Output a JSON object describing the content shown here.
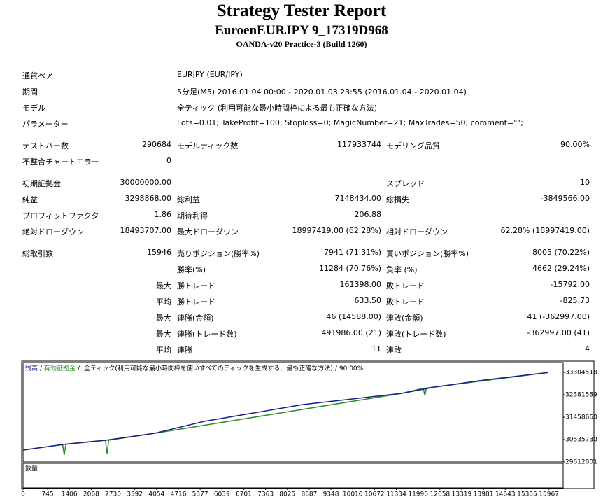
{
  "header": {
    "title": "Strategy Tester Report",
    "subtitle": "EuroenEURJPY 9_17319D968",
    "build": "OANDA-v20 Practice-3 (Build 1260)"
  },
  "settings": [
    {
      "label": "通貨ペア",
      "value": "EURJPY (EUR/JPY)"
    },
    {
      "label": "期間",
      "value": "5分足(M5) 2016.01.04 00:00 - 2020.01.03 23:55 (2016.01.04 - 2020.01.04)"
    },
    {
      "label": "モデル",
      "value": "全ティック (利用可能な最小時間枠による最も正確な方法)"
    },
    {
      "label": "パラメーター",
      "value": "Lots=0.01; TakeProfit=100; Stoploss=0; MagicNumber=21; MaxTrades=50; comment=\"\";"
    }
  ],
  "stats": [
    [
      {
        "c1": "テストバー数",
        "c2": "290684",
        "c3": "モデルティック数",
        "c4": "117933744",
        "c5": "モデリング品質",
        "c6": "90.00%"
      },
      {
        "c1": "不整合チャートエラー",
        "c2": "0"
      }
    ],
    [
      {
        "c1": "初期証拠金",
        "c2": "30000000.00",
        "c5": "スプレッド",
        "c6": "10"
      },
      {
        "c1": "純益",
        "c2": "3298868.00",
        "c3": "総利益",
        "c4": "7148434.00",
        "c5": "総損失",
        "c6": "-3849566.00"
      },
      {
        "c1": "プロフィットファクタ",
        "c2": "1.86",
        "c3": "期待利得",
        "c4": "206.88"
      },
      {
        "c1": "絶対ドローダウン",
        "c2": "18493707.00",
        "c3": "最大ドローダウン",
        "c4": "18997419.00 (62.28%)",
        "c5": "相対ドローダウン",
        "c6": "62.28% (18997419.00)"
      }
    ],
    [
      {
        "c1": "総取引数",
        "c2": "15946",
        "c3": "売りポジション(勝率%)",
        "c4": "7941 (71.31%)",
        "c5": "買いポジション(勝率%)",
        "c6": "8005 (70.22%)"
      },
      {
        "c3": "勝率(%)",
        "c4": "11284 (70.76%)",
        "c5": "負率 (%)",
        "c6": "4662 (29.24%)"
      },
      {
        "c2": "最大",
        "c3": "勝トレード",
        "c4": "161398.00",
        "c5": "敗トレード",
        "c6": "-15792.00"
      },
      {
        "c2": "平均",
        "c3": "勝トレード",
        "c4": "633.50",
        "c5": "敗トレード",
        "c6": "-825.73"
      },
      {
        "c2": "最大",
        "c3": "連勝(金額)",
        "c4": "46 (14588.00)",
        "c5": "連敗(金額)",
        "c6": "41 (-362997.00)"
      },
      {
        "c2": "最大",
        "c3": "連勝(トレード数)",
        "c4": "491986.00 (21)",
        "c5": "連敗(トレード数)",
        "c6": "-362997.00 (41)"
      },
      {
        "c2": "平均",
        "c3": "連勝",
        "c4": "11",
        "c5": "連敗",
        "c6": "4"
      }
    ]
  ],
  "chart_data": {
    "type": "line",
    "legend_separator": "/",
    "model": "全ティック(利用可能な最小時間枠を使いすべてのティックを生成する、最も正確な方法)",
    "quality": "90.00%",
    "volume_label": "数量",
    "series": [
      {
        "name": "残高",
        "color": "#1c1c8c",
        "x": [
          0,
          1200,
          1400,
          2500,
          4000,
          5500,
          7000,
          8500,
          10000,
          11500,
          12500,
          14000,
          15946
        ],
        "values": [
          30103000,
          30330000,
          30363000,
          30507000,
          30795000,
          31285000,
          31631000,
          31978000,
          32208000,
          32439000,
          32699000,
          32987000,
          33298868
        ]
      },
      {
        "name": "有効証拠金",
        "color": "#2c8c2c",
        "x": [
          0,
          1200,
          1250,
          1300,
          2500,
          2550,
          2600,
          4000,
          11500,
          12150,
          12200,
          12250,
          15946
        ],
        "values": [
          30103000,
          30330000,
          29900000,
          30340000,
          30507000,
          29960000,
          30510000,
          30795000,
          32439000,
          32650000,
          32350000,
          32660000,
          33298868
        ]
      }
    ],
    "xlim": [
      0,
      16400
    ],
    "xticks": [
      0,
      745,
      1406,
      2068,
      2730,
      3392,
      4054,
      4716,
      5377,
      6039,
      6701,
      7363,
      8025,
      8687,
      9348,
      10010,
      10672,
      11334,
      11996,
      12658,
      13319,
      13981,
      14643,
      15305,
      15967
    ],
    "ylim": [
      29612801,
      33708300
    ],
    "yticks": [
      29612801,
      30535730,
      31458660,
      32381589,
      33304518
    ]
  }
}
